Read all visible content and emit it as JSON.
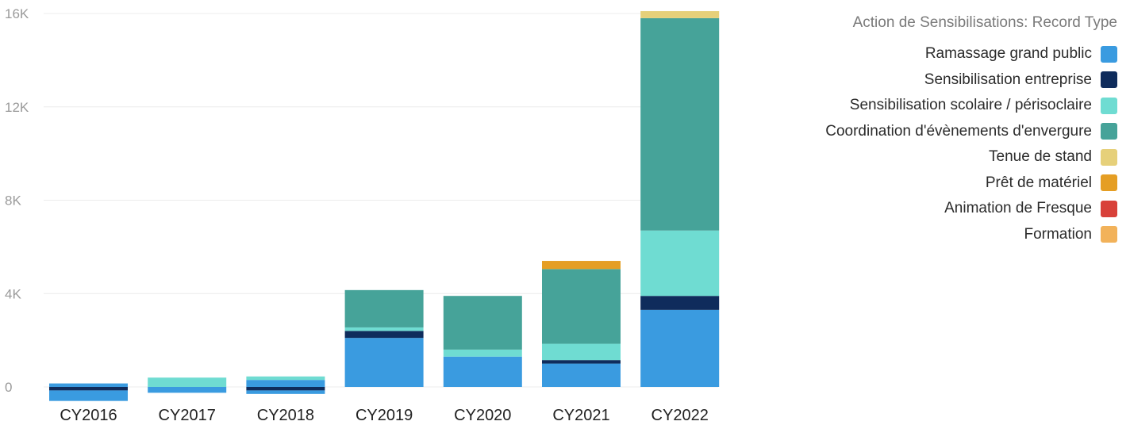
{
  "chart_data": {
    "type": "bar",
    "stacked": true,
    "categories": [
      "CY2016",
      "CY2017",
      "CY2018",
      "CY2019",
      "CY2020",
      "CY2021",
      "CY2022"
    ],
    "ylim": [
      -500,
      16500
    ],
    "yticks": [
      0,
      4000,
      8000,
      12000,
      16000
    ],
    "ytick_labels": [
      "0",
      "4K",
      "8K",
      "12K",
      "16K"
    ],
    "grid": true,
    "legend_position": "right",
    "legend_title": "Action de Sensibilisations: Record Type",
    "series": [
      {
        "name": "Ramassage grand public",
        "color": "#3a9be0",
        "values": [
          600,
          250,
          450,
          2100,
          1300,
          1000,
          3300
        ]
      },
      {
        "name": "Sensibilisation entreprise",
        "color": "#0f2c5c",
        "values": [
          150,
          0,
          150,
          300,
          0,
          150,
          600
        ]
      },
      {
        "name": "Sensibilisation scolaire / périsoclaire",
        "color": "#6fdcd2",
        "values": [
          0,
          400,
          150,
          150,
          300,
          700,
          2800
        ]
      },
      {
        "name": "Coordination d'évènements d'envergure",
        "color": "#46a399",
        "values": [
          0,
          0,
          0,
          1600,
          2300,
          3200,
          9100
        ]
      },
      {
        "name": "Tenue de stand",
        "color": "#e6d07a",
        "values": [
          0,
          0,
          0,
          0,
          0,
          0,
          300
        ]
      },
      {
        "name": "Prêt de matériel",
        "color": "#e59e24",
        "values": [
          0,
          0,
          0,
          0,
          0,
          350,
          0
        ]
      },
      {
        "name": "Animation de Fresque",
        "color": "#d8413a",
        "values": [
          0,
          0,
          0,
          0,
          0,
          0,
          0
        ]
      },
      {
        "name": "Formation",
        "color": "#f2b25a",
        "values": [
          0,
          0,
          0,
          0,
          0,
          0,
          0
        ]
      }
    ],
    "bottom_segments": [
      {
        "series": 1,
        "values": [
          150,
          0,
          150,
          0,
          0,
          0,
          0
        ]
      },
      {
        "series": 0,
        "values": [
          450,
          250,
          150,
          0,
          0,
          0,
          0
        ]
      }
    ]
  }
}
